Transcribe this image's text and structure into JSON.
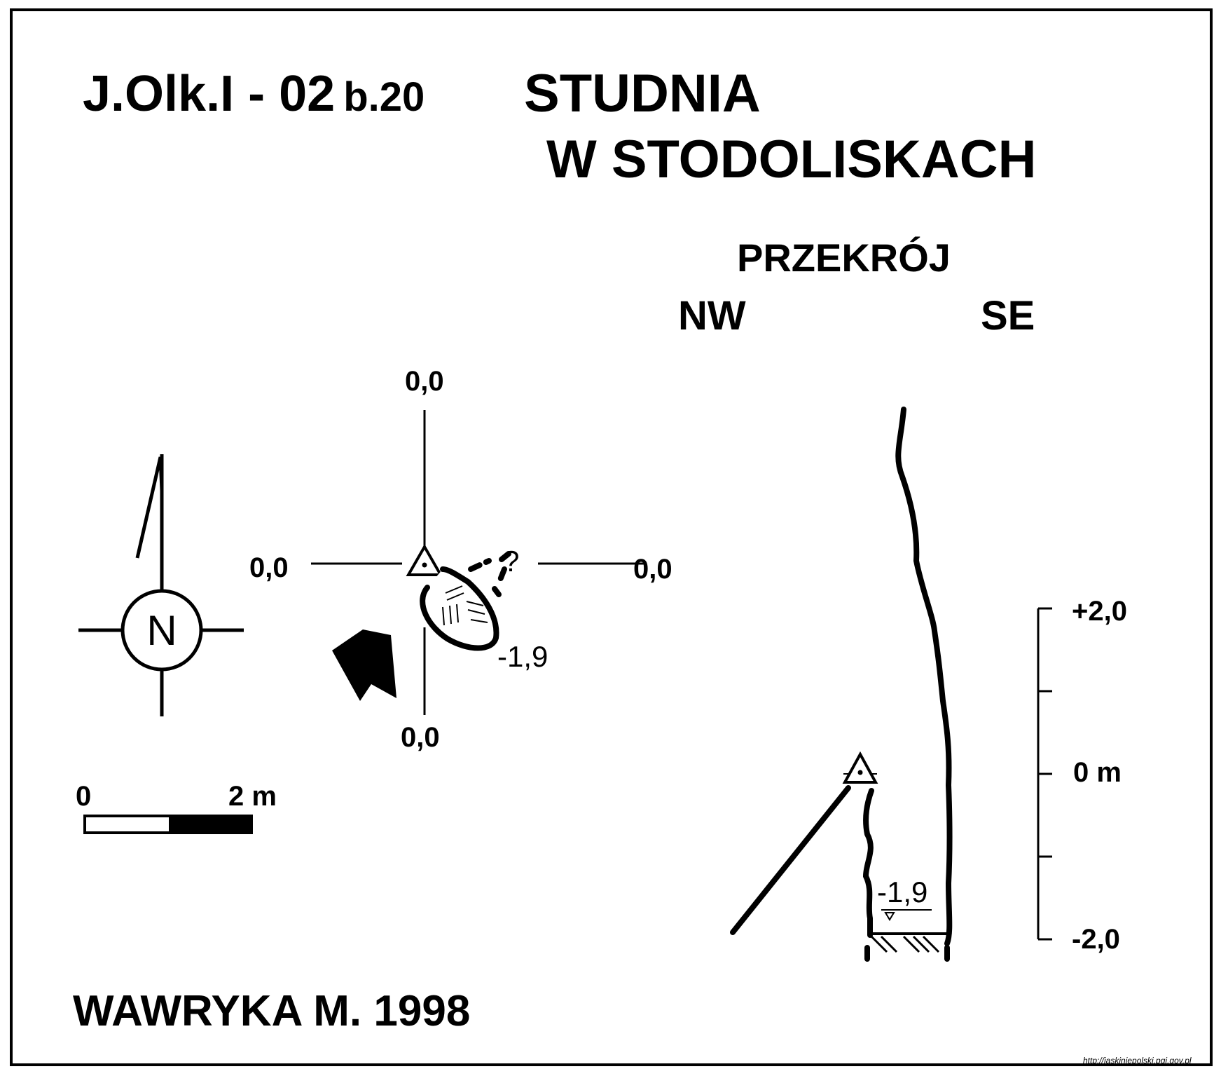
{
  "header": {
    "code": "J.Olk.I - 02",
    "code_suffix": "b.20",
    "title_line1": "STUDNIA",
    "title_line2": "W STODOLISKACH"
  },
  "section": {
    "title": "PRZEKRÓJ",
    "left_dir": "NW",
    "right_dir": "SE",
    "depth_label": "-1,9"
  },
  "plan": {
    "top": "0,0",
    "left": "0,0",
    "right": "0,0",
    "bottom": "0,0",
    "question": "?",
    "depth_label": "-1,9"
  },
  "compass": {
    "letter": "N",
    "icon": "north-arrow-icon"
  },
  "scale_bar": {
    "start": "0",
    "end": "2 m",
    "value_m": 2
  },
  "vertical_scale": {
    "ticks": [
      "+2,0",
      "0 m",
      "-2,0"
    ]
  },
  "footer": {
    "author": "WAWRYKA M. 1998",
    "url": "http://jaskiniepolski.pgi.gov.pl"
  }
}
